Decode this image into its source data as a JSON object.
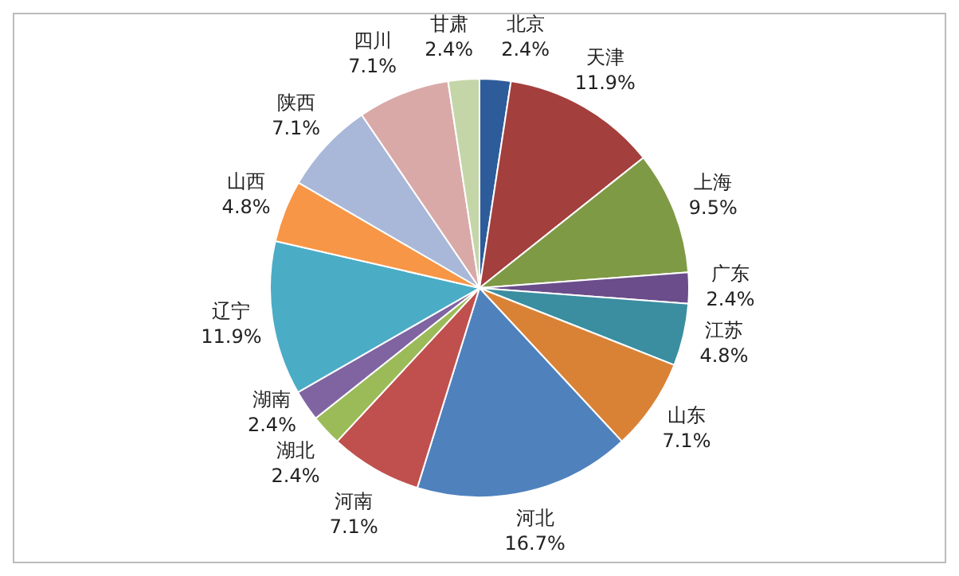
{
  "chart_data": {
    "type": "pie",
    "categories": [
      "北京",
      "天津",
      "上海",
      "广东",
      "江苏",
      "山东",
      "河北",
      "河南",
      "湖北",
      "湖南",
      "辽宁",
      "山西",
      "陕西",
      "四川",
      "甘肃"
    ],
    "values": [
      2.4,
      11.9,
      9.5,
      2.4,
      4.8,
      7.1,
      16.7,
      7.1,
      2.4,
      2.4,
      11.9,
      4.8,
      7.1,
      7.1,
      2.4
    ],
    "value_labels": [
      "2.4%",
      "11.9%",
      "9.5%",
      "2.4%",
      "4.8%",
      "7.1%",
      "16.7%",
      "7.1%",
      "2.4%",
      "2.4%",
      "11.9%",
      "4.8%",
      "7.1%",
      "7.1%",
      "2.4%"
    ],
    "colors": [
      "#2e5c9a",
      "#a33f3c",
      "#7f9a45",
      "#6a4d8a",
      "#3a8ea0",
      "#d98236",
      "#4f81bd",
      "#c0504d",
      "#9bbb59",
      "#8064a2",
      "#4bacc6",
      "#f79646",
      "#a9b8d8",
      "#d9a9a8",
      "#c4d6a8"
    ],
    "legend": false
  }
}
